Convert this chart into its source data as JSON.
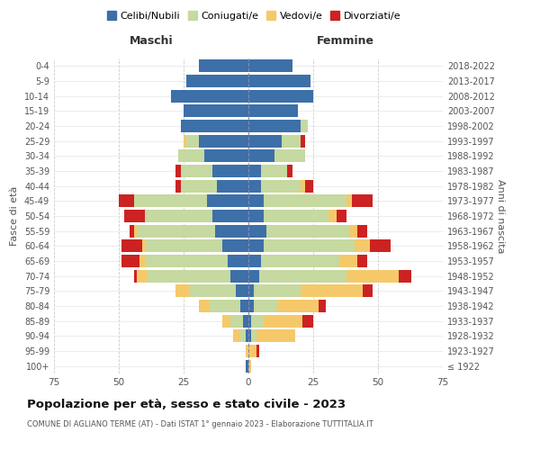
{
  "age_groups": [
    "100+",
    "95-99",
    "90-94",
    "85-89",
    "80-84",
    "75-79",
    "70-74",
    "65-69",
    "60-64",
    "55-59",
    "50-54",
    "45-49",
    "40-44",
    "35-39",
    "30-34",
    "25-29",
    "20-24",
    "15-19",
    "10-14",
    "5-9",
    "0-4"
  ],
  "birth_years": [
    "≤ 1922",
    "1923-1927",
    "1928-1932",
    "1933-1937",
    "1938-1942",
    "1943-1947",
    "1948-1952",
    "1953-1957",
    "1958-1962",
    "1963-1967",
    "1968-1972",
    "1973-1977",
    "1978-1982",
    "1983-1987",
    "1988-1992",
    "1993-1997",
    "1998-2002",
    "2003-2007",
    "2008-2012",
    "2013-2017",
    "2018-2022"
  ],
  "colors": {
    "celibe": "#3d6fa8",
    "coniugato": "#c5d9a0",
    "vedovo": "#f5c96a",
    "divorziato": "#cc2222"
  },
  "males": {
    "celibe": [
      1,
      0,
      1,
      2,
      3,
      5,
      7,
      8,
      10,
      13,
      14,
      16,
      12,
      14,
      17,
      19,
      26,
      25,
      30,
      24,
      19
    ],
    "coniugato": [
      0,
      0,
      2,
      5,
      12,
      18,
      32,
      32,
      30,
      30,
      26,
      28,
      14,
      12,
      10,
      5,
      0,
      0,
      0,
      0,
      0
    ],
    "vedovo": [
      0,
      1,
      3,
      3,
      4,
      5,
      4,
      2,
      1,
      1,
      0,
      0,
      0,
      0,
      0,
      1,
      0,
      0,
      0,
      0,
      0
    ],
    "divorziato": [
      0,
      0,
      0,
      0,
      0,
      0,
      1,
      7,
      8,
      2,
      8,
      6,
      2,
      2,
      0,
      0,
      0,
      0,
      0,
      0,
      0
    ]
  },
  "females": {
    "nubile": [
      0,
      0,
      1,
      1,
      2,
      2,
      4,
      5,
      6,
      7,
      6,
      6,
      5,
      5,
      10,
      13,
      20,
      19,
      25,
      24,
      17
    ],
    "coniugata": [
      0,
      0,
      2,
      5,
      9,
      18,
      34,
      30,
      35,
      32,
      25,
      32,
      15,
      10,
      12,
      7,
      3,
      0,
      0,
      0,
      0
    ],
    "vedova": [
      1,
      3,
      15,
      15,
      16,
      24,
      20,
      7,
      6,
      3,
      3,
      2,
      2,
      0,
      0,
      0,
      0,
      0,
      0,
      0,
      0
    ],
    "divorziata": [
      0,
      1,
      0,
      4,
      3,
      4,
      5,
      4,
      8,
      4,
      4,
      8,
      3,
      2,
      0,
      2,
      0,
      0,
      0,
      0,
      0
    ]
  },
  "title": "Popolazione per età, sesso e stato civile - 2023",
  "subtitle": "COMUNE DI AGLIANO TERME (AT) - Dati ISTAT 1° gennaio 2023 - Elaborazione TUTTITALIA.IT",
  "xlabel_maschi": "Maschi",
  "xlabel_femmine": "Femmine",
  "ylabel": "Fasce di età",
  "ylabel_right": "Anni di nascita",
  "xlim": 75,
  "background_color": "#ffffff",
  "legend_labels": [
    "Celibi/Nubili",
    "Coniugati/e",
    "Vedovi/e",
    "Divorziati/e"
  ]
}
